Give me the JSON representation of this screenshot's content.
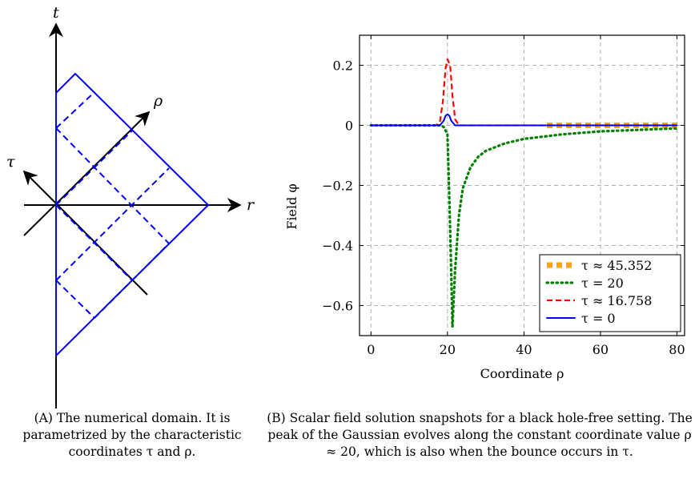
{
  "figure_a": {
    "axis_t": "t",
    "axis_r": "r",
    "axis_rho": "ρ",
    "axis_tau": "τ",
    "line_color": "#0000ff",
    "caption_label": "(A)",
    "caption_text": "The numerical domain. It is parametrized by the characteristic coordinates τ and ρ."
  },
  "figure_b": {
    "caption_label": "(B)",
    "caption_text": "Scalar field solution snapshots for a black hole-free setting. The peak of the Gaussian evolves along the constant coordinate value ρ ≈ 20, which is also when the bounce occurs in τ."
  },
  "chart_data": {
    "type": "line",
    "title": "",
    "xlabel": "Coordinate ρ",
    "ylabel": "Field φ",
    "xlim": [
      -3,
      82
    ],
    "ylim": [
      -0.7,
      0.3
    ],
    "xticks": [
      0,
      20,
      40,
      60,
      80
    ],
    "yticks": [
      0.2,
      0,
      -0.2,
      -0.4,
      -0.6
    ],
    "ytick_labels": [
      "0.2",
      "0",
      "−0.2",
      "−0.4",
      "−0.6"
    ],
    "grid": true,
    "legend_position": "bottom-right",
    "series": [
      {
        "name": "τ ≈ 45.352",
        "color": "#ffa500",
        "style": "dashed-thick",
        "x": [
          46,
          50,
          55,
          60,
          65,
          70,
          75,
          80
        ],
        "y": [
          0.0,
          0.0,
          0.0,
          0.0,
          0.0,
          0.0,
          0.0,
          0.0
        ]
      },
      {
        "name": "τ = 20",
        "color": "#007f00",
        "style": "dotted",
        "x": [
          0,
          10,
          18,
          19,
          20,
          20.5,
          21,
          21.3,
          22,
          23,
          24,
          26,
          28,
          30,
          35,
          40,
          50,
          60,
          70,
          80
        ],
        "y": [
          0,
          0,
          0,
          -0.005,
          -0.03,
          -0.25,
          -0.5,
          -0.67,
          -0.48,
          -0.3,
          -0.21,
          -0.14,
          -0.105,
          -0.085,
          -0.06,
          -0.045,
          -0.03,
          -0.02,
          -0.015,
          -0.01
        ]
      },
      {
        "name": "τ ≈ 16.758",
        "color": "#ff0000",
        "style": "dashed",
        "x": [
          0,
          17,
          18,
          18.8,
          19.5,
          20,
          20.7,
          21.3,
          22,
          23,
          25,
          80
        ],
        "y": [
          0,
          0,
          0.01,
          0.08,
          0.19,
          0.22,
          0.2,
          0.1,
          0.02,
          0.0,
          0,
          0
        ]
      },
      {
        "name": "τ = 0",
        "color": "#0000ff",
        "style": "solid",
        "x": [
          0,
          18,
          19,
          19.5,
          20,
          20.5,
          21,
          22,
          80
        ],
        "y": [
          0,
          0,
          0.015,
          0.032,
          0.037,
          0.032,
          0.015,
          0,
          0
        ]
      }
    ]
  }
}
